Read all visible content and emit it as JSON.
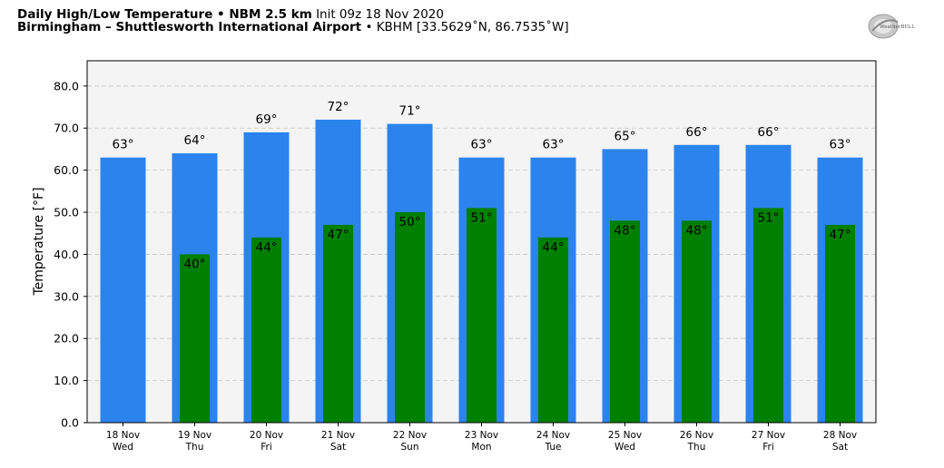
{
  "header": {
    "title_bold": "Daily High/Low Temperature • NBM 2.5 km",
    "title_rest": "Init 09z 18 Nov 2020",
    "location_bold": "Birmingham – Shuttlesworth International Airport",
    "location_rest": "• KBHM [33.5629˚N, 86.7535˚W]"
  },
  "logo": {
    "text": "WeatherBELL",
    "icon": "weatherbell-logo"
  },
  "colors": {
    "high": "#2b83ed",
    "low": "#008000",
    "plot_bg": "#f4f4f4"
  },
  "chart_data": {
    "type": "bar",
    "categories": [
      "18 Nov",
      "19 Nov",
      "20 Nov",
      "21 Nov",
      "22 Nov",
      "23 Nov",
      "24 Nov",
      "25 Nov",
      "26 Nov",
      "27 Nov",
      "28 Nov"
    ],
    "weekdays": [
      "Wed",
      "Thu",
      "Fri",
      "Sat",
      "Sun",
      "Mon",
      "Tue",
      "Wed",
      "Thu",
      "Fri",
      "Sat"
    ],
    "series": [
      {
        "values": [
          63,
          64,
          69,
          72,
          71,
          63,
          63,
          65,
          66,
          66,
          63
        ],
        "labels": [
          "63°",
          "64°",
          "69°",
          "72°",
          "71°",
          "63°",
          "63°",
          "65°",
          "66°",
          "66°",
          "63°"
        ]
      },
      {
        "values": [
          null,
          40,
          44,
          47,
          50,
          51,
          44,
          48,
          48,
          51,
          47
        ],
        "labels": [
          "",
          "40°",
          "44°",
          "47°",
          "50°",
          "51°",
          "44°",
          "48°",
          "48°",
          "51°",
          "47°"
        ]
      }
    ],
    "ylabel": "Temperature [°F]",
    "yticks": [
      "0.0",
      "10.0",
      "20.0",
      "30.0",
      "40.0",
      "50.0",
      "60.0",
      "70.0",
      "80.0"
    ],
    "ylim": [
      0,
      86
    ],
    "grid": true
  }
}
